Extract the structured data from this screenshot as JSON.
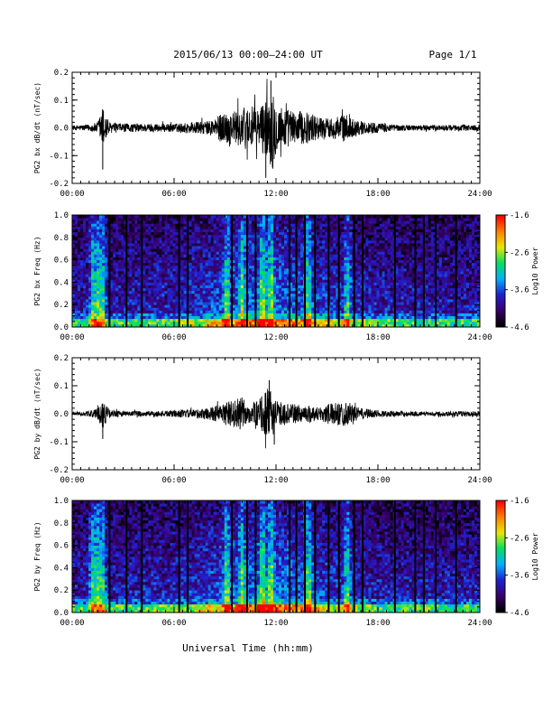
{
  "header": {
    "title": "2015/06/13  00:00–24:00 UT",
    "page": "Page 1/1"
  },
  "xaxis": {
    "label": "Universal Time (hh:mm)",
    "ticks": [
      "00:00",
      "06:00",
      "12:00",
      "18:00",
      "24:00"
    ],
    "range_hours": [
      0,
      24
    ]
  },
  "panels": [
    {
      "id": "bx-dbdt",
      "type": "line",
      "ylabel": "PG2 bx dB/dt (nT/sec)",
      "ylim": [
        -0.2,
        0.2
      ],
      "yticks": [
        "0.2",
        "0.1",
        "0.0",
        "-0.1",
        "-0.2"
      ]
    },
    {
      "id": "bx-spec",
      "type": "heatmap",
      "ylabel": "PG2 bx Freq (Hz)",
      "ylim": [
        0.0,
        1.0
      ],
      "yticks": [
        "1.0",
        "0.8",
        "0.6",
        "0.4",
        "0.2",
        "0.0"
      ]
    },
    {
      "id": "by-dbdt",
      "type": "line",
      "ylabel": "PG2 by dB/dt (nT/sec)",
      "ylim": [
        -0.2,
        0.2
      ],
      "yticks": [
        "0.2",
        "0.1",
        "0.0",
        "-0.1",
        "-0.2"
      ]
    },
    {
      "id": "by-spec",
      "type": "heatmap",
      "ylabel": "PG2 by Freq (Hz)",
      "ylim": [
        0.0,
        1.0
      ],
      "yticks": [
        "1.0",
        "0.8",
        "0.6",
        "0.4",
        "0.2",
        "0.0"
      ]
    }
  ],
  "colorbar": {
    "label": "Log10 Power",
    "ticks": [
      "-1.6",
      "-2.6",
      "-3.6",
      "-4.6"
    ],
    "range": [
      -4.6,
      -1.6
    ],
    "colors": [
      "#000000",
      "#3a006e",
      "#2020d0",
      "#00b0ff",
      "#00e060",
      "#e8e800",
      "#ff8000",
      "#ff0000"
    ]
  },
  "chart_data": [
    {
      "type": "line",
      "title": "",
      "ylabel": "PG2 bx dB/dt (nT/sec)",
      "x_unit": "hours UT",
      "ylim": [
        -0.2,
        0.2
      ],
      "envelope": {
        "x": [
          0,
          1,
          1.5,
          1.8,
          2.2,
          3,
          4,
          5,
          6,
          7,
          8,
          8.5,
          9,
          9.5,
          10,
          10.5,
          11,
          11.5,
          11.8,
          12,
          12.5,
          13,
          13.5,
          14,
          14.5,
          15,
          15.5,
          16,
          16.5,
          17,
          18,
          19,
          20,
          21,
          22,
          23,
          24
        ],
        "amplitude": [
          0.008,
          0.012,
          0.02,
          0.08,
          0.02,
          0.015,
          0.015,
          0.015,
          0.015,
          0.02,
          0.025,
          0.04,
          0.06,
          0.06,
          0.075,
          0.08,
          0.07,
          0.12,
          0.15,
          0.09,
          0.075,
          0.06,
          0.06,
          0.055,
          0.04,
          0.035,
          0.04,
          0.05,
          0.035,
          0.025,
          0.018,
          0.012,
          0.01,
          0.01,
          0.01,
          0.012,
          0.012
        ]
      },
      "peaks": [
        {
          "x": 1.8,
          "y": -0.15
        },
        {
          "x": 11.7,
          "y": 0.17
        },
        {
          "x": 11.4,
          "y": -0.18
        }
      ]
    },
    {
      "type": "heatmap",
      "ylabel": "PG2 bx Freq (Hz)",
      "ylim": [
        0.0,
        1.0
      ],
      "value_range": [
        -4.6,
        -1.6
      ],
      "bright_columns_hours": [
        1.2,
        1.5,
        1.8,
        9.1,
        10.0,
        11.2,
        11.7,
        13.9,
        16.2
      ],
      "gap_lines_hours": [
        2.2,
        3.2,
        4.1,
        6.3,
        6.8,
        9.4,
        10.3,
        10.8,
        12.8,
        13.2,
        13.7,
        14.3,
        15.1,
        15.7,
        16.6,
        17.1,
        19.0,
        20.2,
        20.7,
        21.4,
        22.6
      ]
    },
    {
      "type": "line",
      "title": "",
      "ylabel": "PG2 by dB/dt (nT/sec)",
      "x_unit": "hours UT",
      "ylim": [
        -0.2,
        0.2
      ],
      "envelope": {
        "x": [
          0,
          1,
          1.5,
          1.8,
          2.2,
          3,
          4,
          5,
          6,
          7,
          8,
          8.5,
          9,
          9.5,
          10,
          10.5,
          11,
          11.5,
          11.8,
          12,
          12.5,
          13,
          13.5,
          14,
          14.5,
          15,
          15.5,
          16,
          16.5,
          17,
          18,
          19,
          20,
          21,
          22,
          23,
          24
        ],
        "amplitude": [
          0.006,
          0.01,
          0.02,
          0.05,
          0.015,
          0.01,
          0.01,
          0.01,
          0.012,
          0.015,
          0.02,
          0.03,
          0.04,
          0.05,
          0.06,
          0.03,
          0.05,
          0.09,
          0.08,
          0.05,
          0.035,
          0.035,
          0.03,
          0.03,
          0.025,
          0.035,
          0.04,
          0.045,
          0.03,
          0.02,
          0.012,
          0.01,
          0.008,
          0.008,
          0.008,
          0.01,
          0.01
        ]
      },
      "peaks": [
        {
          "x": 1.8,
          "y": -0.09
        },
        {
          "x": 11.6,
          "y": 0.12
        },
        {
          "x": 11.9,
          "y": -0.11
        }
      ]
    },
    {
      "type": "heatmap",
      "ylabel": "PG2 by Freq (Hz)",
      "ylim": [
        0.0,
        1.0
      ],
      "value_range": [
        -4.6,
        -1.6
      ],
      "bright_columns_hours": [
        1.2,
        1.5,
        1.8,
        9.1,
        10.0,
        11.2,
        11.7,
        13.9,
        16.2
      ],
      "gap_lines_hours": [
        2.2,
        3.2,
        4.1,
        6.3,
        6.8,
        9.4,
        10.3,
        10.8,
        12.8,
        13.2,
        13.7,
        14.3,
        15.1,
        15.7,
        16.6,
        17.1,
        19.0,
        20.2,
        20.7,
        21.4,
        22.6
      ]
    }
  ]
}
